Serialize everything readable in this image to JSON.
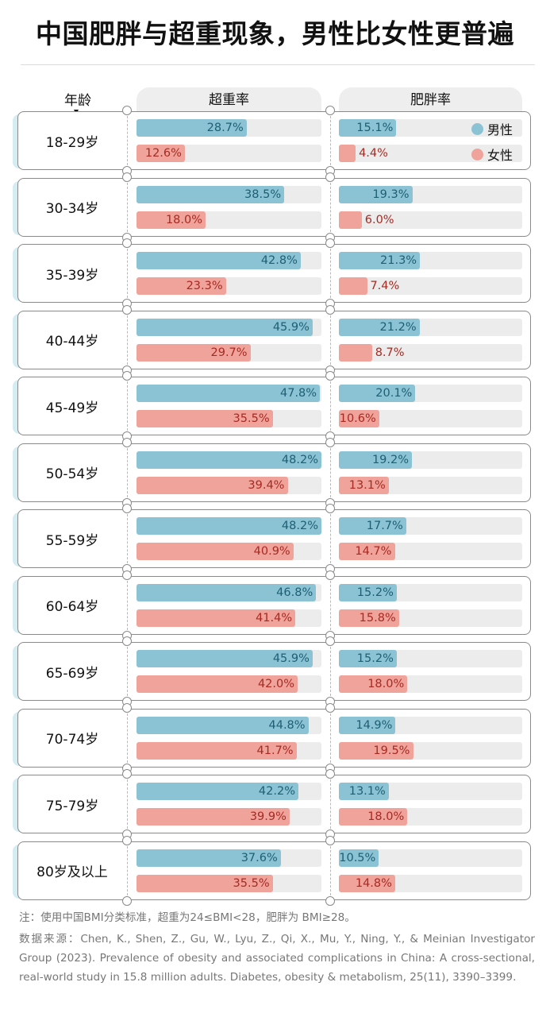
{
  "title": "中国肥胖与超重现象，男性比女性更普遍",
  "header": {
    "age_label": "年龄",
    "overweight_label": "超重率",
    "obesity_label": "肥胖率"
  },
  "legend": {
    "male": "男性",
    "female": "女性"
  },
  "colors": {
    "male_bar": "#8bc3d5",
    "female_bar": "#f0a39a",
    "male_text": "#1d5f72",
    "female_text": "#a62a22",
    "track": "#ececec"
  },
  "chart_data": {
    "type": "bar",
    "title": "中国肥胖与超重现象，男性比女性更普遍",
    "orientation": "horizontal",
    "unit": "%",
    "scale_max": 48.2,
    "categories": [
      "18-29岁",
      "30-34岁",
      "35-39岁",
      "40-44岁",
      "45-49岁",
      "50-54岁",
      "55-59岁",
      "60-64岁",
      "65-69岁",
      "70-74岁",
      "75-79岁",
      "80岁及以上"
    ],
    "panels": [
      {
        "name": "超重率",
        "series": [
          {
            "name": "男性",
            "values": [
              28.7,
              38.5,
              42.8,
              45.9,
              47.8,
              48.2,
              48.2,
              46.8,
              45.9,
              44.8,
              42.2,
              37.6
            ]
          },
          {
            "name": "女性",
            "values": [
              12.6,
              18.0,
              23.3,
              29.7,
              35.5,
              39.4,
              40.9,
              41.4,
              42.0,
              41.7,
              39.9,
              35.5
            ]
          }
        ]
      },
      {
        "name": "肥胖率",
        "series": [
          {
            "name": "男性",
            "values": [
              15.1,
              19.3,
              21.3,
              21.2,
              20.1,
              19.2,
              17.7,
              15.2,
              15.2,
              14.9,
              13.1,
              10.5
            ]
          },
          {
            "name": "女性",
            "values": [
              4.4,
              6.0,
              7.4,
              8.7,
              10.6,
              13.1,
              14.7,
              15.8,
              18.0,
              19.5,
              18.0,
              14.8
            ]
          }
        ]
      }
    ],
    "legend": [
      "男性",
      "女性"
    ],
    "legend_position": "top-right"
  },
  "footnote": {
    "note": "注：使用中国BMI分类标准，超重为24≤BMI<28，肥胖为 BMI≥28。",
    "source": "数据来源：Chen, K., Shen, Z., Gu, W., Lyu, Z., Qi, X., Mu, Y., Ning, Y., & Meinian Investigator Group (2023). Prevalence of obesity and associated complications in China: A cross-sectional, real-world study in 15.8 million adults. Diabetes, obesity & metabolism, 25(11), 3390–3399."
  }
}
